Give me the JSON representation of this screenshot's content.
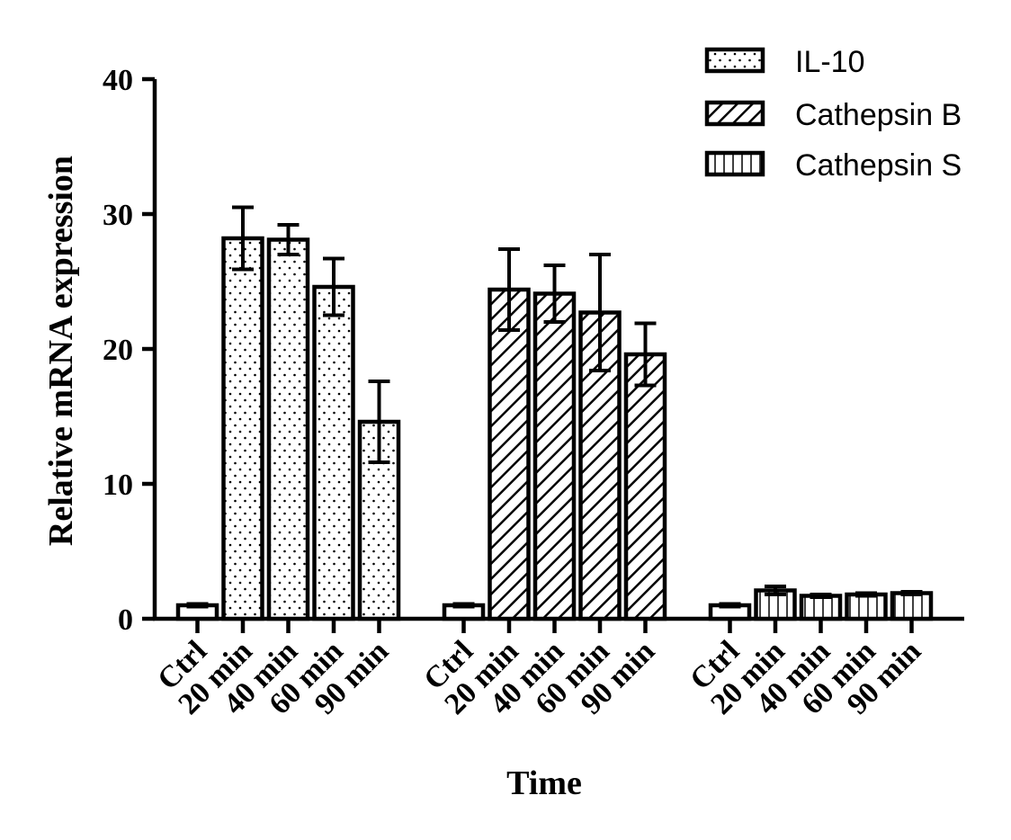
{
  "chart_data": {
    "type": "bar",
    "xlabel": "Time",
    "ylabel": "Relative mRNA expression",
    "ylim": [
      0,
      40
    ],
    "yticks": [
      0,
      10,
      20,
      30,
      40
    ],
    "categories": [
      "Ctrl",
      "20 min",
      "40 min",
      "60 min",
      "90 min"
    ],
    "grid": false,
    "legend_position": "top-right",
    "series": [
      {
        "name": "IL-10",
        "pattern": "dots",
        "values": [
          1.0,
          28.2,
          28.1,
          24.6,
          14.6
        ],
        "errors": [
          0.1,
          2.3,
          1.1,
          2.1,
          3.0
        ]
      },
      {
        "name": "Cathepsin B",
        "pattern": "diagonal-hatch",
        "values": [
          1.0,
          24.4,
          24.1,
          22.7,
          19.6
        ],
        "errors": [
          0.1,
          3.0,
          2.1,
          4.3,
          2.3
        ]
      },
      {
        "name": "Cathepsin S",
        "pattern": "vertical-lines",
        "values": [
          1.0,
          2.1,
          1.7,
          1.8,
          1.9
        ],
        "errors": [
          0.1,
          0.3,
          0.1,
          0.1,
          0.1
        ]
      }
    ]
  },
  "colors": {
    "ink": "#000000",
    "fill": "#ffffff"
  }
}
